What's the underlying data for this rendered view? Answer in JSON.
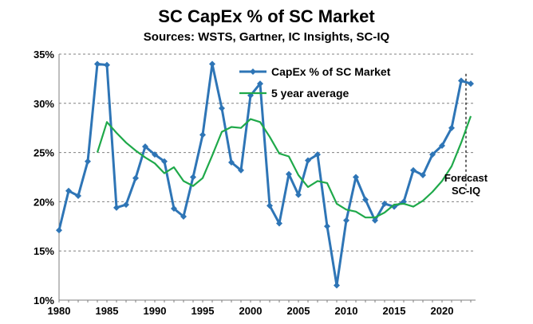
{
  "chart_data": {
    "type": "line",
    "title": "SC CapEx % of SC Market",
    "subtitle": "Sources: WSTS, Gartner, IC Insights, SC-IQ",
    "xlabel": "",
    "ylabel": "",
    "xlim": [
      1980,
      2023.5
    ],
    "ylim": [
      10,
      35
    ],
    "x_ticks": [
      1980,
      1985,
      1990,
      1995,
      2000,
      2005,
      2010,
      2015,
      2020
    ],
    "y_ticks": [
      10,
      15,
      20,
      25,
      30,
      35
    ],
    "y_tick_labels": [
      "10%",
      "15%",
      "20%",
      "25%",
      "30%",
      "35%"
    ],
    "grid": "horizontal-dashed",
    "legend_position": "top-center",
    "series": [
      {
        "name": "CapEx % of SC Market",
        "color": "#2E75B6",
        "marker": "diamond",
        "x": [
          1980,
          1981,
          1982,
          1983,
          1984,
          1985,
          1986,
          1987,
          1988,
          1989,
          1990,
          1991,
          1992,
          1993,
          1994,
          1995,
          1996,
          1997,
          1998,
          1999,
          2000,
          2001,
          2002,
          2003,
          2004,
          2005,
          2006,
          2007,
          2008,
          2009,
          2010,
          2011,
          2012,
          2013,
          2014,
          2015,
          2016,
          2017,
          2018,
          2019,
          2020,
          2021,
          2022,
          2023
        ],
        "values": [
          17.1,
          21.1,
          20.6,
          24.1,
          34.0,
          33.9,
          19.4,
          19.7,
          22.4,
          25.6,
          24.8,
          24.1,
          19.3,
          18.5,
          22.5,
          26.8,
          34.0,
          29.5,
          24.0,
          23.2,
          30.8,
          32.0,
          19.6,
          17.8,
          22.8,
          20.7,
          24.2,
          24.8,
          17.5,
          11.5,
          18.1,
          22.5,
          20.2,
          18.1,
          19.8,
          19.5,
          20.0,
          23.2,
          22.7,
          24.8,
          25.7,
          27.5,
          32.3,
          32.0
        ]
      },
      {
        "name": "5 year average",
        "color": "#1FA94A",
        "marker": "none",
        "x": [
          1984,
          1985,
          1986,
          1987,
          1988,
          1989,
          1990,
          1991,
          1992,
          1993,
          1994,
          1995,
          1996,
          1997,
          1998,
          1999,
          2000,
          2001,
          2002,
          2003,
          2004,
          2005,
          2006,
          2007,
          2008,
          2009,
          2010,
          2011,
          2012,
          2013,
          2014,
          2015,
          2016,
          2017,
          2018,
          2019,
          2020,
          2021,
          2022,
          2023
        ],
        "values": [
          25.0,
          28.1,
          27.0,
          26.0,
          25.2,
          24.5,
          23.9,
          22.9,
          23.5,
          22.1,
          21.6,
          22.4,
          24.7,
          27.1,
          27.6,
          27.5,
          28.4,
          28.1,
          26.6,
          24.9,
          24.6,
          22.7,
          21.5,
          22.1,
          21.9,
          19.8,
          19.2,
          19.0,
          18.4,
          18.4,
          18.9,
          19.7,
          19.8,
          19.5,
          20.1,
          21.0,
          22.1,
          23.6,
          26.0,
          28.7
        ]
      }
    ],
    "annotations": [
      {
        "text": "Forecast",
        "x": 2022.5
      },
      {
        "text": "SC-IQ",
        "x": 2022.5
      }
    ],
    "forecast_line_x": 2022.5
  }
}
